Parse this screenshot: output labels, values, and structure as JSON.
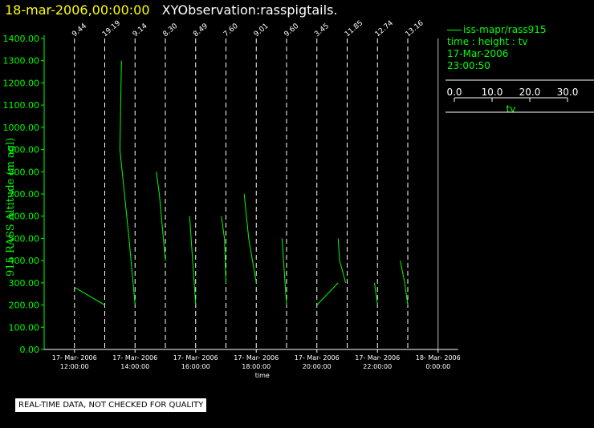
{
  "header": {
    "date": "18-mar-2006,00:00:00",
    "observation": "XYObservation:rasspigtails."
  },
  "legend": {
    "series": "iss-mapr/rass915",
    "kind": "time : height : tv",
    "date": "17-Mar-2006",
    "time": "23:00:50",
    "scale_ticks": [
      "0.0",
      "10.0",
      "20.0",
      "30.0"
    ],
    "scale_label": "tv"
  },
  "footer": {
    "quality_note": "REAL-TIME DATA, NOT CHECKED FOR QUALITY"
  },
  "chart_data": {
    "type": "line",
    "ylabel": "915 RASS Altitude (m agl)",
    "xlabel": "time",
    "ylim": [
      0,
      1400
    ],
    "yticks": [
      "0.00",
      "100.00",
      "200.00",
      "300.00",
      "400.00",
      "500.00",
      "600.00",
      "700.00",
      "800.00",
      "900.00",
      "1000.00",
      "1100.00",
      "1200.00",
      "1300.00",
      "1400.00"
    ],
    "xlim_hours": [
      11.0,
      24.0
    ],
    "xticks": [
      {
        "hour": 12,
        "date": "17- Mar- 2006",
        "time": "12:00:00"
      },
      {
        "hour": 14,
        "date": "17- Mar- 2006",
        "time": "14:00:00"
      },
      {
        "hour": 16,
        "date": "17- Mar- 2006",
        "time": "16:00:00"
      },
      {
        "hour": 18,
        "date": "17- Mar- 2006",
        "time": "18:00:00"
      },
      {
        "hour": 20,
        "date": "17- Mar- 2006",
        "time": "20:00:00"
      },
      {
        "hour": 22,
        "date": "17- Mar- 2006",
        "time": "22:00:00"
      },
      {
        "hour": 24,
        "date": "18- Mar- 2006",
        "time": "0:00:00"
      }
    ],
    "profile_markers": [
      {
        "hour": 12.0,
        "label": "9.44"
      },
      {
        "hour": 13.0,
        "label": "19.19"
      },
      {
        "hour": 14.0,
        "label": "9.14"
      },
      {
        "hour": 15.0,
        "label": "8.30"
      },
      {
        "hour": 16.0,
        "label": "8.49"
      },
      {
        "hour": 17.0,
        "label": "7.60"
      },
      {
        "hour": 18.0,
        "label": "9.01"
      },
      {
        "hour": 19.0,
        "label": "9.60"
      },
      {
        "hour": 20.0,
        "label": "3.45"
      },
      {
        "hour": 21.0,
        "label": "11.85"
      },
      {
        "hour": 22.0,
        "label": "12.74"
      },
      {
        "hour": 23.0,
        "label": "13.16"
      }
    ],
    "series": [
      {
        "name": "iss-mapr/rass915",
        "segments": [
          [
            [
              12.0,
              280
            ],
            [
              13.0,
              200
            ]
          ],
          [
            [
              13.55,
              1300
            ],
            [
              13.5,
              900
            ],
            [
              13.8,
              500
            ],
            [
              14.0,
              200
            ]
          ],
          [
            [
              14.7,
              800
            ],
            [
              14.8,
              700
            ],
            [
              15.0,
              400
            ]
          ],
          [
            [
              15.8,
              600
            ],
            [
              15.9,
              400
            ],
            [
              16.0,
              200
            ]
          ],
          [
            [
              16.85,
              600
            ],
            [
              16.95,
              500
            ],
            [
              17.0,
              300
            ]
          ],
          [
            [
              17.6,
              700
            ],
            [
              17.75,
              500
            ],
            [
              18.0,
              300
            ]
          ],
          [
            [
              18.85,
              500
            ],
            [
              18.95,
              300
            ],
            [
              19.0,
              200
            ]
          ],
          [
            [
              20.0,
              200
            ],
            [
              20.7,
              300
            ]
          ],
          [
            [
              20.7,
              500
            ],
            [
              20.75,
              400
            ],
            [
              20.95,
              300
            ]
          ],
          [
            [
              21.9,
              300
            ],
            [
              22.0,
              200
            ]
          ],
          [
            [
              22.75,
              400
            ],
            [
              22.9,
              300
            ],
            [
              23.0,
              200
            ]
          ]
        ]
      }
    ]
  }
}
